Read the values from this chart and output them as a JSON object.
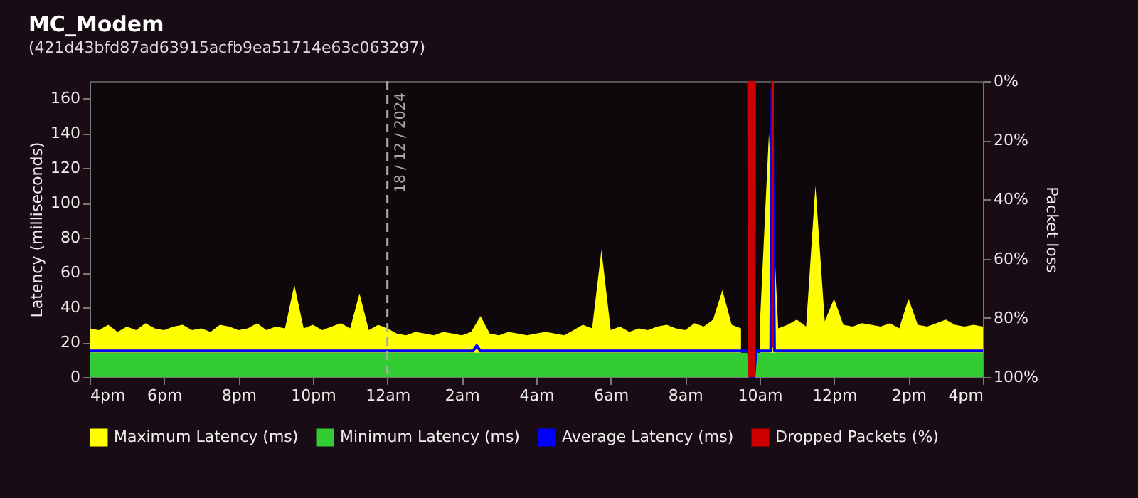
{
  "chart_data": {
    "type": "area",
    "title": "MC_Modem",
    "subtitle": "(421d43bfd87ad63915acfb9ea51714e63c063297)",
    "ylabel": "Latency (milliseconds)",
    "y2label": "Packet loss",
    "xlim": [
      "2024-12-17T16:00",
      "2024-12-18T16:00"
    ],
    "xticks": [
      {
        "value": "2024-12-17T16:00",
        "label": "4pm"
      },
      {
        "value": "2024-12-17T18:00",
        "label": "6pm"
      },
      {
        "value": "2024-12-17T20:00",
        "label": "8pm"
      },
      {
        "value": "2024-12-17T22:00",
        "label": "10pm"
      },
      {
        "value": "2024-12-18T00:00",
        "label": "12am"
      },
      {
        "value": "2024-12-18T02:00",
        "label": "2am"
      },
      {
        "value": "2024-12-18T04:00",
        "label": "4am"
      },
      {
        "value": "2024-12-18T06:00",
        "label": "6am"
      },
      {
        "value": "2024-12-18T08:00",
        "label": "8am"
      },
      {
        "value": "2024-12-18T10:00",
        "label": "10am"
      },
      {
        "value": "2024-12-18T12:00",
        "label": "12pm"
      },
      {
        "value": "2024-12-18T14:00",
        "label": "2pm"
      },
      {
        "value": "2024-12-18T16:00",
        "label": "4pm"
      }
    ],
    "ylim": [
      0,
      170
    ],
    "yticks": [
      0,
      20,
      40,
      60,
      80,
      100,
      120,
      140,
      160
    ],
    "y2lim": [
      100,
      0
    ],
    "y2ticks": [
      {
        "value": 0,
        "label": "0%"
      },
      {
        "value": 20,
        "label": "20%"
      },
      {
        "value": 40,
        "label": "40%"
      },
      {
        "value": 60,
        "label": "60%"
      },
      {
        "value": 80,
        "label": "80%"
      },
      {
        "value": 100,
        "label": "100%"
      }
    ],
    "grid": false,
    "legend": "bottom",
    "ref_lines": [
      {
        "axis": "x",
        "value": "2024-12-18T00:00",
        "label": "18 / 12 / 2024",
        "line_style": "dashed",
        "color": "#aaaaaa"
      }
    ],
    "series": [
      {
        "name": "Maximum Latency (ms)",
        "color": "#ffff00",
        "x": [
          "2024-12-17T16:00",
          "2024-12-17T16:15",
          "2024-12-17T16:30",
          "2024-12-17T16:45",
          "2024-12-17T17:00",
          "2024-12-17T17:15",
          "2024-12-17T17:30",
          "2024-12-17T17:45",
          "2024-12-17T18:00",
          "2024-12-17T18:15",
          "2024-12-17T18:30",
          "2024-12-17T18:45",
          "2024-12-17T19:00",
          "2024-12-17T19:15",
          "2024-12-17T19:30",
          "2024-12-17T19:45",
          "2024-12-17T20:00",
          "2024-12-17T20:15",
          "2024-12-17T20:30",
          "2024-12-17T20:45",
          "2024-12-17T21:00",
          "2024-12-17T21:15",
          "2024-12-17T21:30",
          "2024-12-17T21:45",
          "2024-12-17T22:00",
          "2024-12-17T22:15",
          "2024-12-17T22:30",
          "2024-12-17T22:45",
          "2024-12-17T23:00",
          "2024-12-17T23:15",
          "2024-12-17T23:30",
          "2024-12-17T23:45",
          "2024-12-18T00:00",
          "2024-12-18T00:15",
          "2024-12-18T00:30",
          "2024-12-18T00:45",
          "2024-12-18T01:00",
          "2024-12-18T01:15",
          "2024-12-18T01:30",
          "2024-12-18T01:45",
          "2024-12-18T02:00",
          "2024-12-18T02:15",
          "2024-12-18T02:30",
          "2024-12-18T02:45",
          "2024-12-18T03:00",
          "2024-12-18T03:15",
          "2024-12-18T03:30",
          "2024-12-18T03:45",
          "2024-12-18T04:00",
          "2024-12-18T04:15",
          "2024-12-18T04:30",
          "2024-12-18T04:45",
          "2024-12-18T05:00",
          "2024-12-18T05:15",
          "2024-12-18T05:30",
          "2024-12-18T05:45",
          "2024-12-18T06:00",
          "2024-12-18T06:15",
          "2024-12-18T06:30",
          "2024-12-18T06:45",
          "2024-12-18T07:00",
          "2024-12-18T07:15",
          "2024-12-18T07:30",
          "2024-12-18T07:45",
          "2024-12-18T08:00",
          "2024-12-18T08:15",
          "2024-12-18T08:30",
          "2024-12-18T08:45",
          "2024-12-18T09:00",
          "2024-12-18T09:15",
          "2024-12-18T09:30",
          "2024-12-18T09:45",
          "2024-12-18T10:00",
          "2024-12-18T10:15",
          "2024-12-18T10:30",
          "2024-12-18T10:45",
          "2024-12-18T11:00",
          "2024-12-18T11:15",
          "2024-12-18T11:30",
          "2024-12-18T11:45",
          "2024-12-18T12:00",
          "2024-12-18T12:15",
          "2024-12-18T12:30",
          "2024-12-18T12:45",
          "2024-12-18T13:00",
          "2024-12-18T13:15",
          "2024-12-18T13:30",
          "2024-12-18T13:45",
          "2024-12-18T14:00",
          "2024-12-18T14:15",
          "2024-12-18T14:30",
          "2024-12-18T14:45",
          "2024-12-18T15:00",
          "2024-12-18T15:15",
          "2024-12-18T15:30",
          "2024-12-18T15:45",
          "2024-12-18T16:00"
        ],
        "values": [
          28,
          27,
          30,
          26,
          29,
          27,
          31,
          28,
          27,
          29,
          30,
          27,
          28,
          26,
          30,
          29,
          27,
          28,
          31,
          27,
          29,
          28,
          53,
          28,
          30,
          27,
          29,
          31,
          28,
          48,
          27,
          30,
          28,
          25,
          24,
          26,
          25,
          24,
          26,
          25,
          24,
          26,
          35,
          25,
          24,
          26,
          25,
          24,
          25,
          26,
          25,
          24,
          27,
          30,
          28,
          73,
          27,
          29,
          26,
          28,
          27,
          29,
          30,
          28,
          27,
          31,
          29,
          33,
          50,
          30,
          28,
          null,
          27,
          140,
          28,
          30,
          33,
          29,
          110,
          32,
          45,
          30,
          29,
          31,
          30,
          29,
          31,
          28,
          45,
          30,
          29,
          31,
          33,
          30,
          29,
          30,
          29
        ]
      },
      {
        "name": "Minimum Latency (ms)",
        "color": "#33cc33",
        "x": [
          "2024-12-17T16:00",
          "2024-12-18T09:42",
          "2024-12-18T09:45",
          "2024-12-18T09:51",
          "2024-12-18T09:54",
          "2024-12-18T16:00"
        ],
        "values": [
          14,
          14,
          0,
          0,
          14,
          14
        ]
      },
      {
        "name": "Average Latency (ms)",
        "color": "#0000ff",
        "type": "line",
        "x": [
          "2024-12-17T16:00",
          "2024-12-18T02:18",
          "2024-12-18T02:24",
          "2024-12-18T02:30",
          "2024-12-18T09:42",
          "2024-12-18T09:45",
          "2024-12-18T09:51",
          "2024-12-18T09:54",
          "2024-12-18T10:18",
          "2024-12-18T10:20",
          "2024-12-18T10:24",
          "2024-12-18T16:00"
        ],
        "values": [
          15,
          15,
          18,
          15,
          15,
          0,
          0,
          15,
          15,
          165,
          15,
          15
        ]
      },
      {
        "name": "Dropped Packets (%)",
        "color": "#cc0000",
        "axis": "y2",
        "x": [
          "2024-12-17T16:00",
          "2024-12-18T09:40",
          "2024-12-18T09:41",
          "2024-12-18T09:53",
          "2024-12-18T09:54",
          "2024-12-18T10:19",
          "2024-12-18T10:20",
          "2024-12-18T10:22",
          "2024-12-18T10:23",
          "2024-12-18T16:00"
        ],
        "values": [
          0,
          0,
          100,
          100,
          0,
          0,
          90,
          90,
          0,
          0
        ]
      }
    ]
  }
}
